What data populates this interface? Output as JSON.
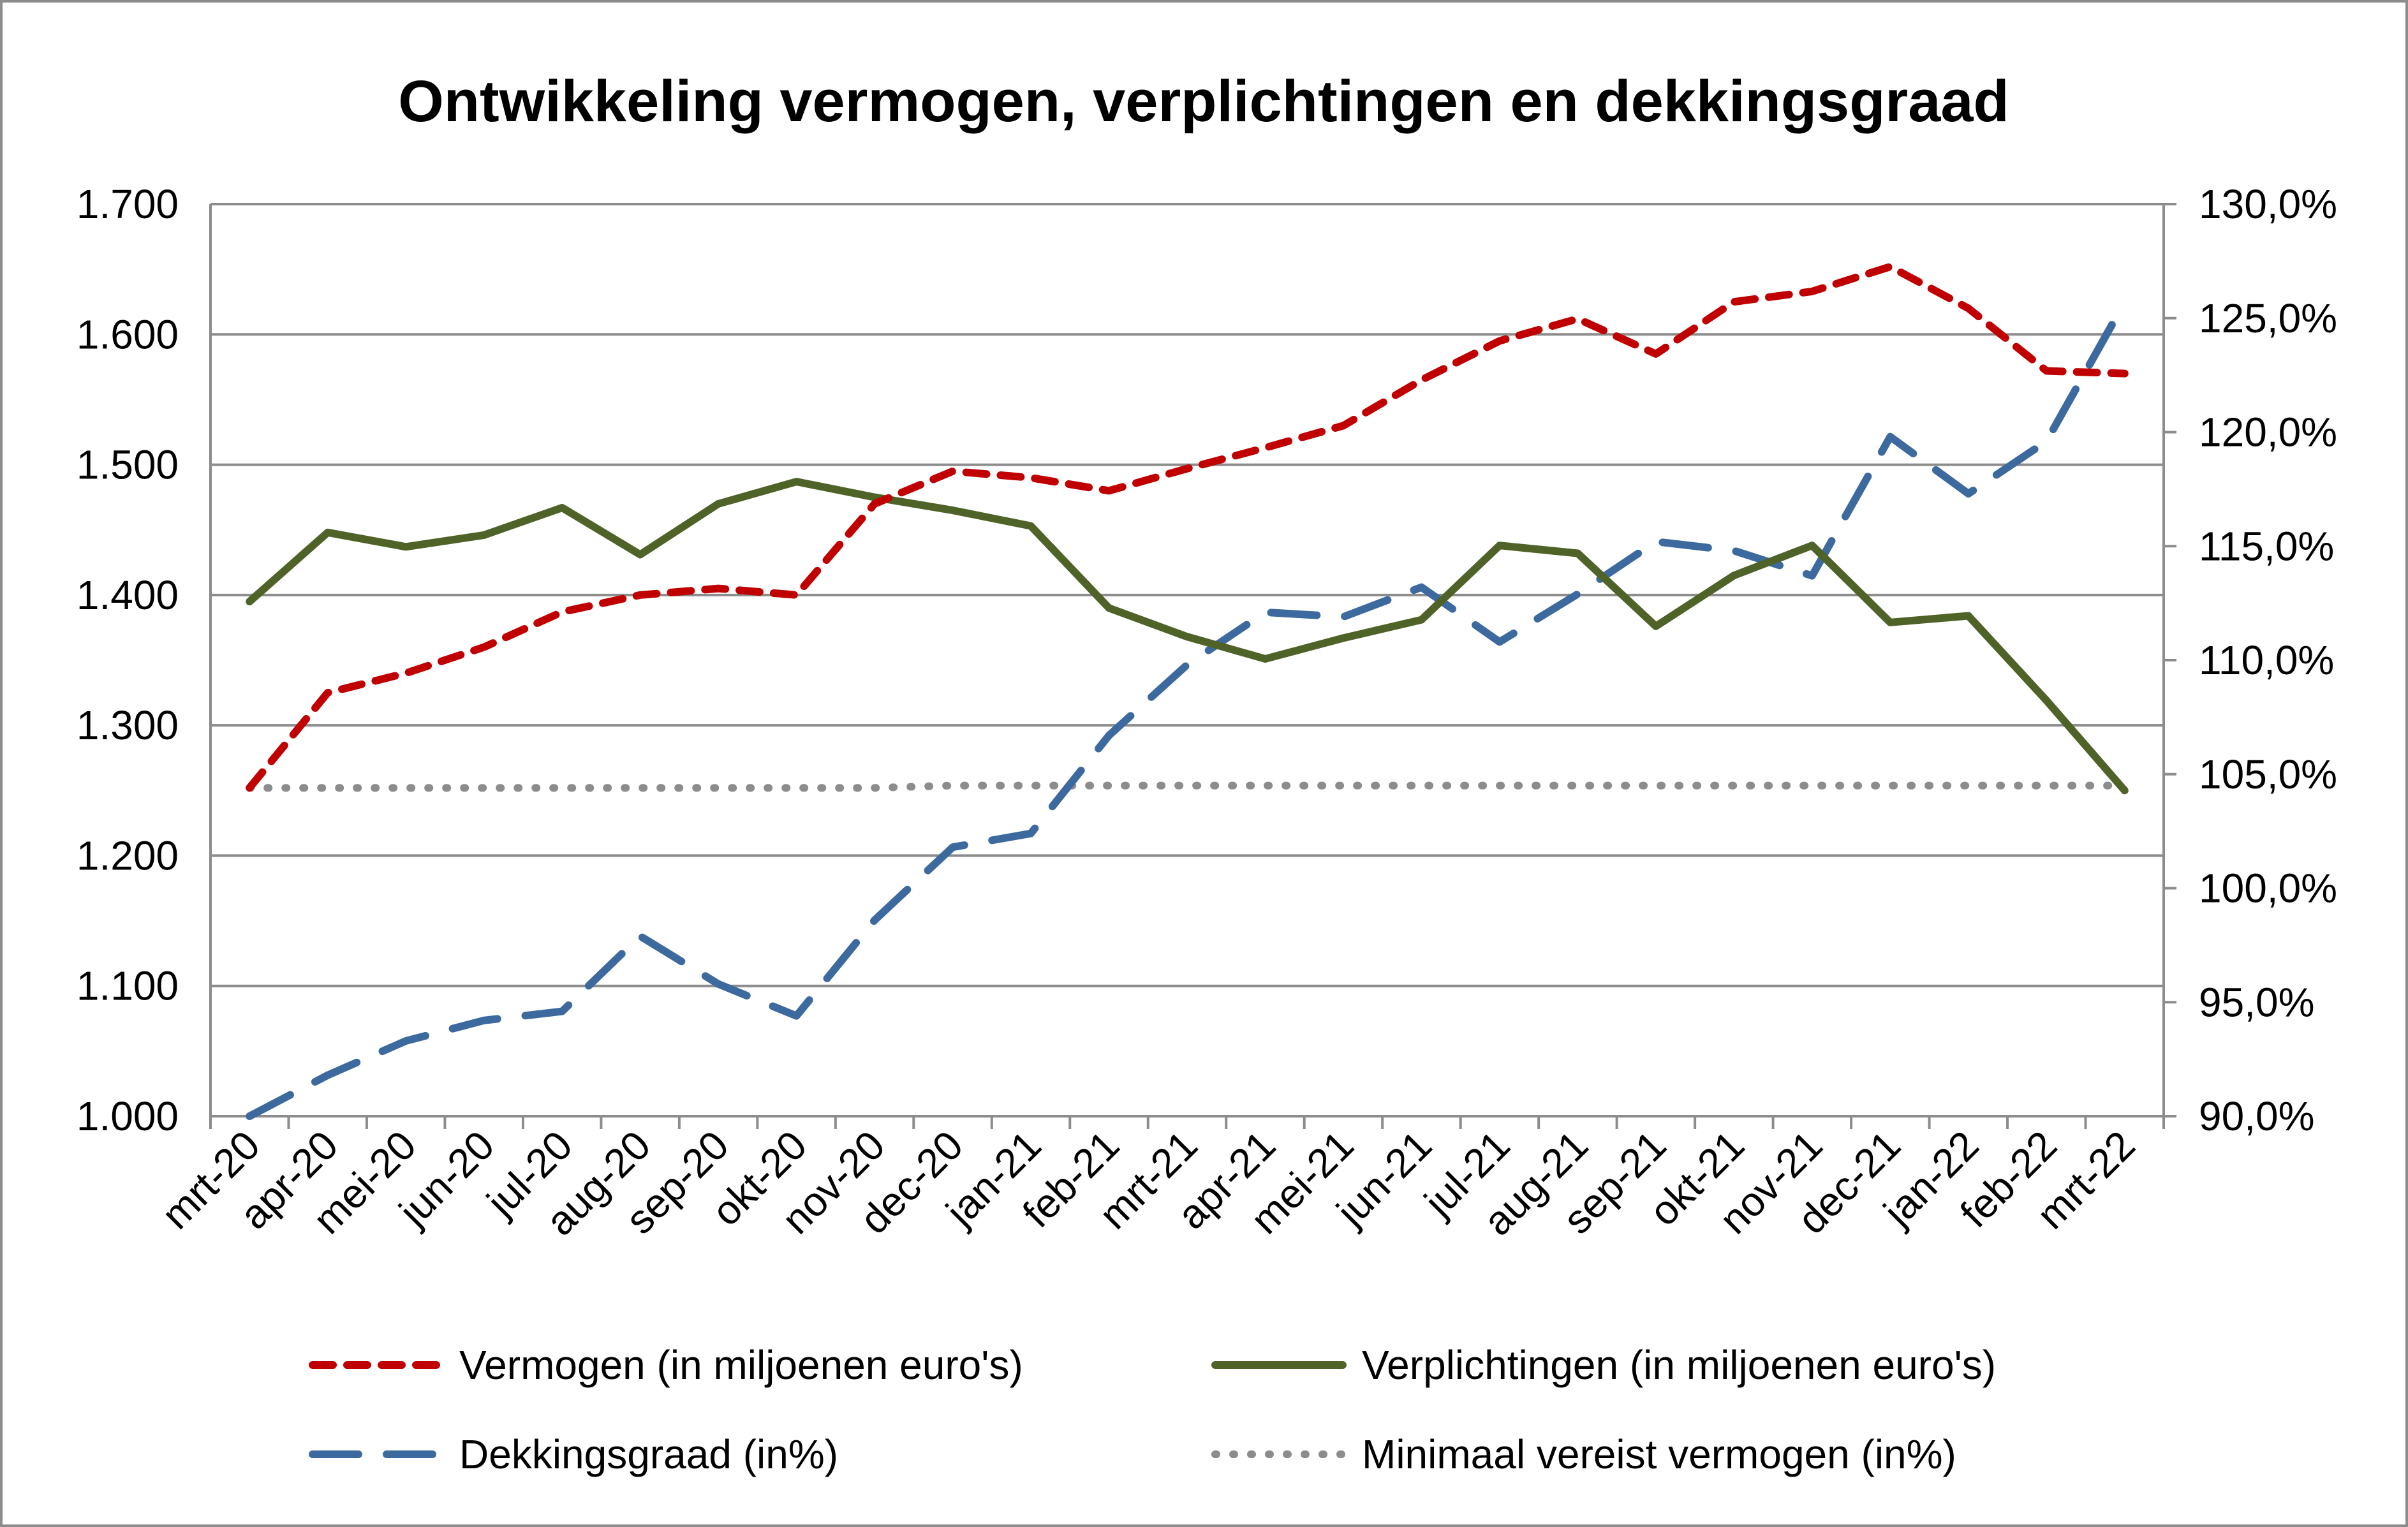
{
  "chart_data": {
    "type": "line",
    "title": "Ontwikkeling vermogen, verplichtingen en dekkingsgraad",
    "categories": [
      "mrt-20",
      "apr-20",
      "mei-20",
      "jun-20",
      "jul-20",
      "aug-20",
      "sep-20",
      "okt-20",
      "nov-20",
      "dec-20",
      "jan-21",
      "feb-21",
      "mrt-21",
      "apr-21",
      "mei-21",
      "jun-21",
      "jul-21",
      "aug-21",
      "sep-21",
      "okt-21",
      "nov-21",
      "dec-21",
      "jan-22",
      "feb-22",
      "mrt-22"
    ],
    "y_left": {
      "ylim": [
        1000,
        1700
      ],
      "ticks": [
        1000,
        1100,
        1200,
        1300,
        1400,
        1500,
        1600,
        1700
      ],
      "tick_labels": [
        "1.000",
        "1.100",
        "1.200",
        "1.300",
        "1.400",
        "1.500",
        "1.600",
        "1.700"
      ]
    },
    "y_right": {
      "ylim": [
        90,
        130
      ],
      "ticks": [
        90,
        95,
        100,
        105,
        110,
        115,
        120,
        125,
        130
      ],
      "tick_labels": [
        "90,0%",
        "95,0%",
        "100,0%",
        "105,0%",
        "110,0%",
        "115,0%",
        "120,0%",
        "125,0%",
        "130,0%"
      ]
    },
    "grid": true,
    "legend_position": "bottom",
    "series": [
      {
        "name": "Vermogen (in miljoenen euro's)",
        "axis": "left",
        "style": "short-dash",
        "color": "#c00000",
        "values": [
          1252,
          1325,
          1340,
          1360,
          1387,
          1400,
          1405,
          1400,
          1470,
          1495,
          1490,
          1480,
          1497,
          1513,
          1530,
          1565,
          1595,
          1612,
          1585,
          1625,
          1633,
          1652,
          1620,
          1572,
          1570
        ]
      },
      {
        "name": "Verplichtingen (in miljoenen euro's)",
        "axis": "left",
        "style": "solid",
        "color": "#4f6228",
        "values": [
          1395,
          1448,
          1437,
          1446,
          1467,
          1431,
          1470,
          1487,
          1475,
          1465,
          1453,
          1390,
          1368,
          1351,
          1367,
          1381,
          1438,
          1432,
          1376,
          1415,
          1438,
          1379,
          1384,
          1319,
          1250
        ]
      },
      {
        "name": "Dekkingsgraad (in%)",
        "axis": "right",
        "style": "long-dash",
        "color": "#3d6a9e",
        "values": [
          90.0,
          91.8,
          93.3,
          94.2,
          94.6,
          97.9,
          95.8,
          94.4,
          98.6,
          101.8,
          102.4,
          106.7,
          109.8,
          112.1,
          111.9,
          113.2,
          110.8,
          112.9,
          115.2,
          114.8,
          113.7,
          119.8,
          117.3,
          119.6,
          125.7
        ]
      },
      {
        "name": "Minimaal vereist vermogen (in%)",
        "axis": "right",
        "style": "dotted",
        "color": "#8c8c8c",
        "values": [
          104.4,
          104.4,
          104.4,
          104.4,
          104.4,
          104.4,
          104.4,
          104.4,
          104.4,
          104.5,
          104.5,
          104.5,
          104.5,
          104.5,
          104.5,
          104.5,
          104.5,
          104.5,
          104.5,
          104.5,
          104.5,
          104.5,
          104.5,
          104.5,
          104.5
        ]
      }
    ]
  }
}
